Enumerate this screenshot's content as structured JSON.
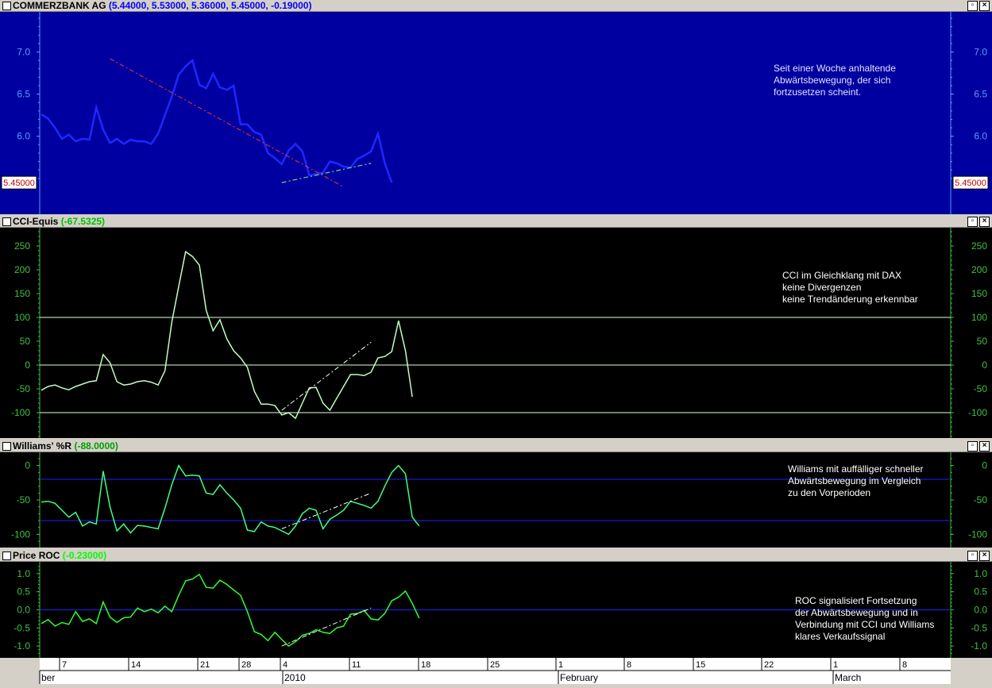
{
  "panes": [
    {
      "id": "price",
      "title": "COMMERZBANK AG",
      "readout": "(5.44000, 5.53000, 5.36000, 5.45000, -0.19000)",
      "readout_color": "#0000ff",
      "bg": "#0000a0",
      "line_color": "#1e28ff",
      "axis_color": "#50a0ff",
      "yticks": [
        7.0,
        6.5,
        6.0
      ],
      "ytick_labels": [
        "7.0",
        "6.5",
        "6.0"
      ],
      "ylim": [
        5.15,
        7.4
      ],
      "value_tag": "5.45000",
      "hlines": [],
      "annotation": [
        "Seit einer Woche anhaltende",
        "Abwärtsbewegung, der sich",
        "fortzusetzen scheint."
      ],
      "trendlines": [
        {
          "color": "#ff3030",
          "points": [
            [
              10,
              6.92
            ],
            [
              44,
              5.4
            ]
          ]
        },
        {
          "color": "#80ff80",
          "points": [
            [
              35,
              5.45
            ],
            [
              48,
              5.68
            ]
          ]
        }
      ],
      "values": [
        6.26,
        6.21,
        6.1,
        5.97,
        6.02,
        5.94,
        5.97,
        5.96,
        6.34,
        6.08,
        5.92,
        5.97,
        5.91,
        5.96,
        5.94,
        5.94,
        5.91,
        6.03,
        6.25,
        6.47,
        6.73,
        6.83,
        6.9,
        6.61,
        6.57,
        6.74,
        6.58,
        6.55,
        6.6,
        6.14,
        6.14,
        6.05,
        6.02,
        5.8,
        5.74,
        5.67,
        5.83,
        5.91,
        5.82,
        5.54,
        5.55,
        5.57,
        5.7,
        5.68,
        5.64,
        5.63,
        5.73,
        5.77,
        5.82,
        6.03,
        5.68,
        5.45
      ]
    },
    {
      "id": "cci",
      "title": "CCI-Equis",
      "readout": "(-67.5325)",
      "readout_color": "#00c000",
      "bg": "#000000",
      "line_color": "#c0ffc0",
      "axis_color": "#40c040",
      "yticks": [
        250,
        200,
        150,
        100,
        50,
        0,
        -50,
        -100
      ],
      "ytick_labels": [
        "250",
        "200",
        "150",
        "100",
        "50",
        "0",
        "-50",
        "-100"
      ],
      "ylim": [
        -140,
        275
      ],
      "hlines": [
        {
          "value": 100,
          "color": "#e0ffe0"
        },
        {
          "value": 0,
          "color": "#e0ffe0"
        },
        {
          "value": -100,
          "color": "#e0ffe0"
        }
      ],
      "annotation": [
        "CCI im Gleichklang mit DAX",
        "keine Divergenzen",
        "keine Trendänderung erkennbar"
      ],
      "trendlines": [
        {
          "color": "#ffffff",
          "points": [
            [
              35,
              -95
            ],
            [
              48,
              48
            ]
          ]
        }
      ],
      "values": [
        -53,
        -45,
        -42,
        -48,
        -52,
        -45,
        -40,
        -35,
        -33,
        22,
        5,
        -35,
        -42,
        -40,
        -35,
        -33,
        -36,
        -42,
        -12,
        90,
        165,
        238,
        228,
        210,
        115,
        72,
        95,
        55,
        30,
        15,
        -5,
        -55,
        -82,
        -82,
        -85,
        -105,
        -100,
        -112,
        -80,
        -48,
        -47,
        -80,
        -95,
        -70,
        -45,
        -20,
        -20,
        -22,
        -15,
        15,
        18,
        28,
        93,
        30,
        -67
      ]
    },
    {
      "id": "williams",
      "title": "Williams' %R",
      "readout": "(-88.0000)",
      "readout_color": "#00a000",
      "bg": "#000000",
      "line_color": "#40ff80",
      "axis_color": "#40c040",
      "yticks": [
        0,
        -50,
        -100
      ],
      "ytick_labels": [
        "0",
        "-50",
        "-100"
      ],
      "ylim": [
        -110,
        10
      ],
      "hlines": [
        {
          "value": -20,
          "color": "#2020ff"
        },
        {
          "value": -80,
          "color": "#2020ff"
        }
      ],
      "annotation": [
        "Williams mit auffälliger schneller",
        "Abwärtsbewegung im Vergleich",
        "zu den Vorperioden"
      ],
      "trendlines": [
        {
          "color": "#ffffff",
          "points": [
            [
              35,
              -92
            ],
            [
              48,
              -40
            ]
          ]
        }
      ],
      "values": [
        -53,
        -52,
        -55,
        -65,
        -75,
        -68,
        -88,
        -82,
        -85,
        -8,
        -60,
        -95,
        -85,
        -98,
        -87,
        -88,
        -90,
        -92,
        -62,
        -28,
        0,
        -15,
        -14,
        -15,
        -40,
        -42,
        -28,
        -40,
        -50,
        -62,
        -94,
        -96,
        -82,
        -88,
        -90,
        -95,
        -100,
        -88,
        -70,
        -62,
        -65,
        -92,
        -78,
        -72,
        -65,
        -52,
        -55,
        -58,
        -62,
        -52,
        -30,
        -10,
        0,
        -12,
        -75,
        -88
      ]
    },
    {
      "id": "roc",
      "title": "Price ROC",
      "readout": "(-0.23000)",
      "readout_color": "#00ff00",
      "bg": "#000000",
      "line_color": "#30ff30",
      "axis_color": "#40c040",
      "yticks": [
        1.0,
        0.5,
        0.0,
        -0.5,
        -1.0
      ],
      "ytick_labels": [
        "1.0",
        "0.5",
        "0.0",
        "-0.5",
        "-1.0"
      ],
      "ylim": [
        -1.15,
        1.15
      ],
      "hlines": [
        {
          "value": 0,
          "color": "#2020ff"
        }
      ],
      "annotation": [
        "ROC signalisiert Fortsetzung",
        "der Abwärtsbewegung und in",
        "Verbindung mit CCI und Williams",
        "klares Verkaufssignal"
      ],
      "trendlines": [
        {
          "color": "#ffffff",
          "points": [
            [
              35,
              -1.0
            ],
            [
              48,
              0.05
            ]
          ]
        }
      ],
      "values": [
        -0.38,
        -0.27,
        -0.45,
        -0.35,
        -0.4,
        -0.05,
        -0.32,
        -0.25,
        -0.38,
        0.22,
        -0.2,
        -0.35,
        -0.22,
        -0.2,
        0.05,
        -0.05,
        0.02,
        -0.08,
        0.1,
        -0.05,
        0.4,
        0.8,
        0.85,
        0.98,
        0.62,
        0.6,
        0.82,
        0.7,
        0.55,
        0.4,
        -0.05,
        -0.6,
        -0.68,
        -0.85,
        -0.62,
        -0.82,
        -1.0,
        -0.88,
        -0.7,
        -0.65,
        -0.55,
        -0.62,
        -0.65,
        -0.5,
        -0.45,
        -0.12,
        -0.1,
        -0.02,
        -0.25,
        -0.28,
        -0.1,
        0.25,
        0.35,
        0.52,
        0.18,
        -0.23
      ]
    }
  ],
  "dates": {
    "day_labels": [
      "7",
      "14",
      "21",
      "28",
      "4",
      "11",
      "18",
      "25",
      "1",
      "8",
      "15",
      "22",
      "1",
      "8"
    ],
    "month_labels": [
      "ber",
      "2010",
      "February",
      "March"
    ]
  },
  "chart_data": [
    {
      "type": "line",
      "title": "COMMERZBANK AG",
      "ylim": [
        5.15,
        7.4
      ],
      "series": [
        {
          "name": "COMMERZBANK AG",
          "ref": "panes.0.values"
        }
      ]
    },
    {
      "type": "line",
      "title": "CCI-Equis",
      "ylim": [
        -140,
        275
      ]
    },
    {
      "type": "line",
      "title": "Williams' %R",
      "ylim": [
        -110,
        10
      ]
    },
    {
      "type": "line",
      "title": "Price ROC",
      "ylim": [
        -1.15,
        1.15
      ]
    }
  ]
}
